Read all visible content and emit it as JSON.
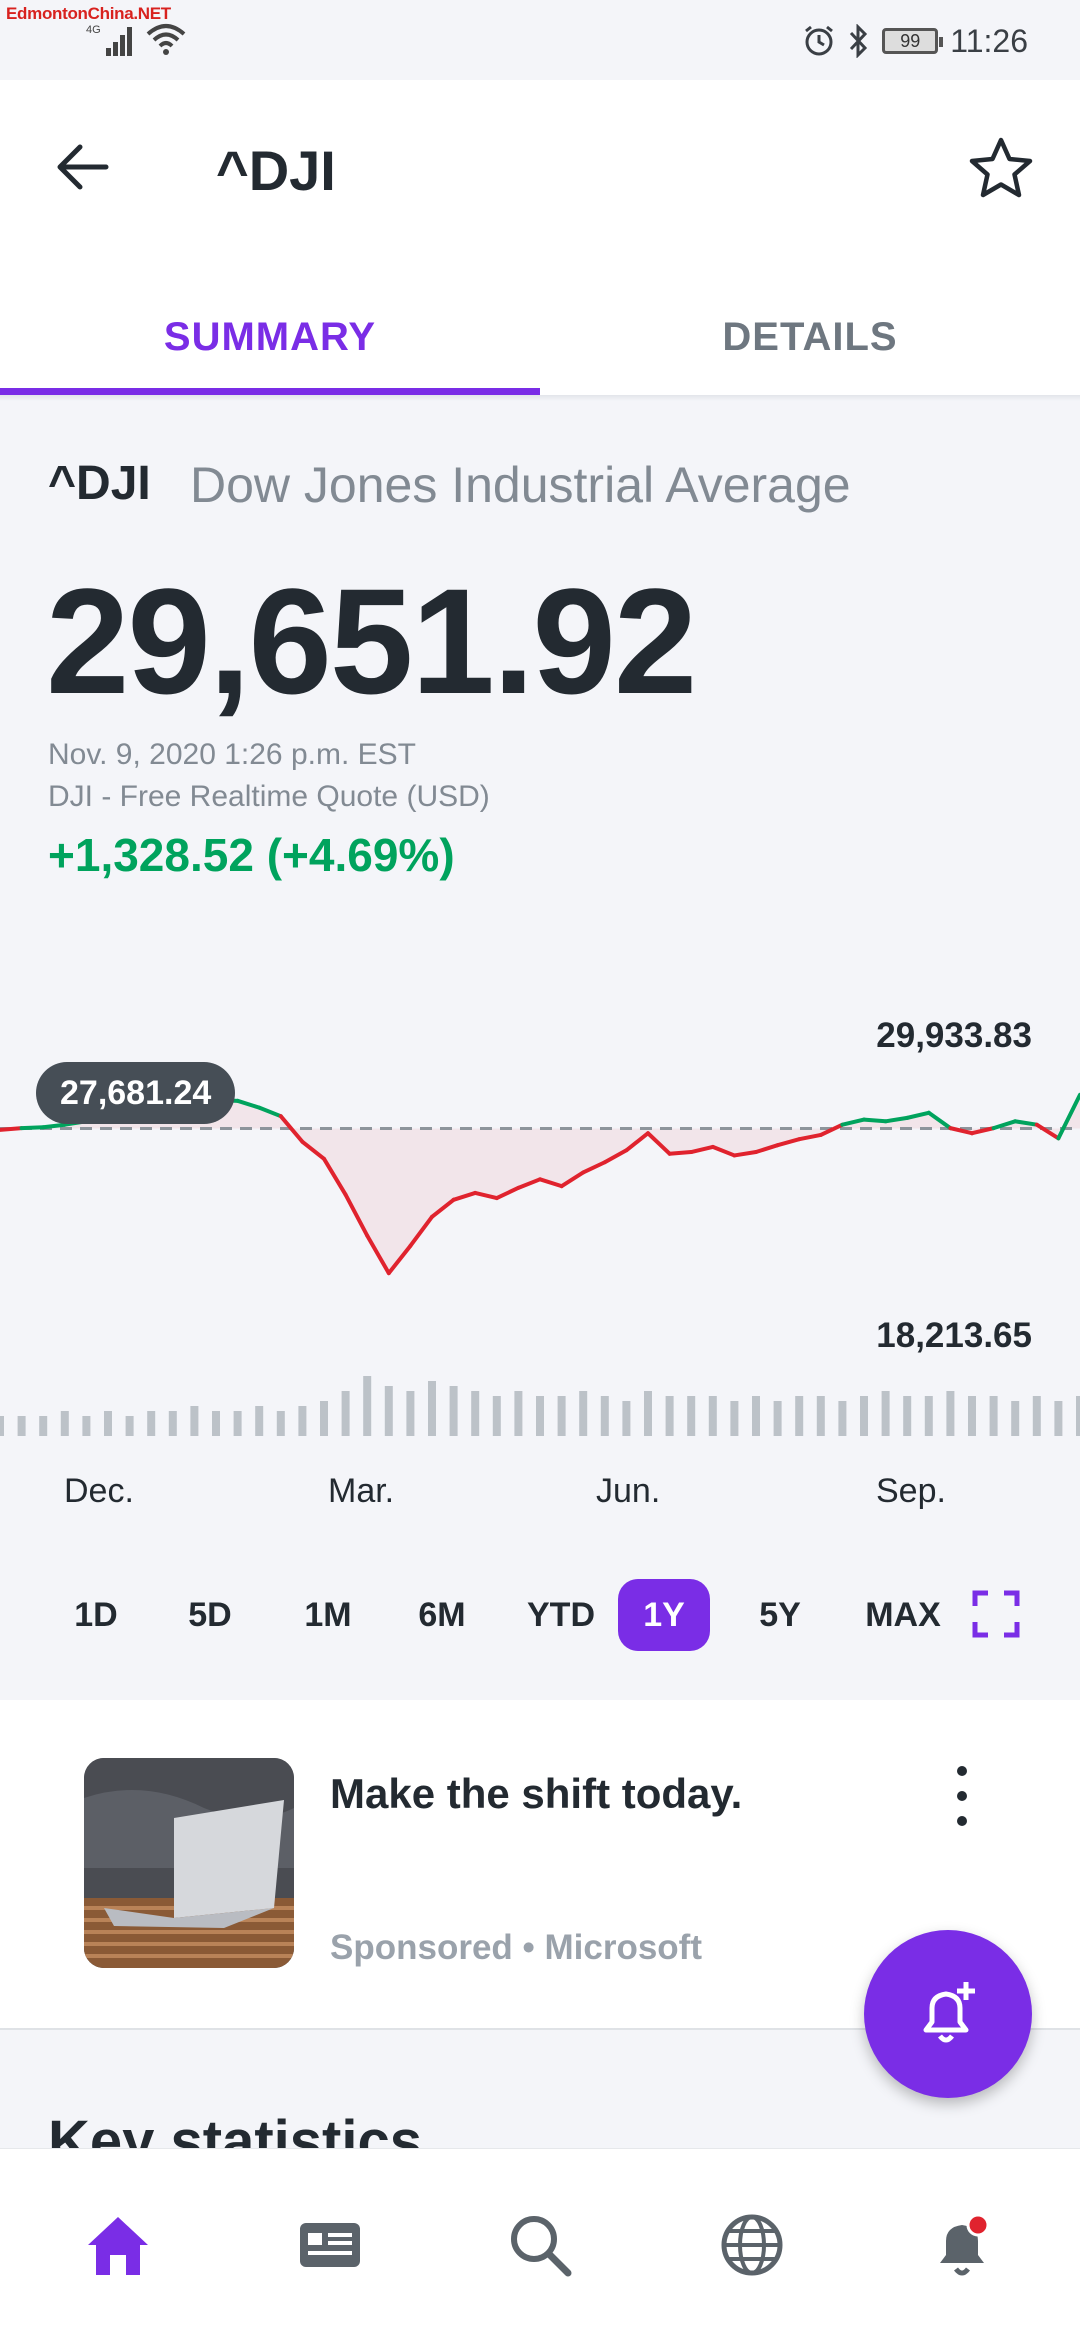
{
  "status_bar": {
    "brand": "EdmontonChina.NET",
    "network": "4G",
    "battery": "99",
    "time": "11:26"
  },
  "header": {
    "title": "^DJI",
    "tabs": [
      {
        "label": "SUMMARY",
        "active": true
      },
      {
        "label": "DETAILS",
        "active": false
      }
    ]
  },
  "quote": {
    "symbol": "^DJI",
    "name": "Dow Jones Industrial Average",
    "price": "29,651.92",
    "timestamp": "Nov. 9, 2020 1:26 p.m. EST",
    "source": "DJI - Free Realtime Quote (USD)",
    "change": "+1,328.52 (+4.69%)",
    "colors": {
      "up": "#00a35d",
      "down": "#e0232e",
      "accent": "#7a2de6"
    }
  },
  "chart_data": {
    "type": "line",
    "previous_close": 27681.24,
    "previous_close_label": "27,681.24",
    "high_label": "29,933.83",
    "low_label": "18,213.65",
    "ylim": [
      18213.65,
      29933.83
    ],
    "x_ticks": [
      "Dec.",
      "Mar.",
      "Jun.",
      "Sep."
    ],
    "x": [
      0,
      1,
      2,
      3,
      4,
      5,
      6,
      7,
      8,
      9,
      10,
      11,
      12,
      13,
      14,
      15,
      16,
      17,
      18,
      19,
      20,
      21,
      22,
      23,
      24,
      25,
      26,
      27,
      28,
      29,
      30,
      31,
      32,
      33,
      34,
      35,
      36,
      37,
      38,
      39,
      40,
      41,
      42,
      43,
      44,
      45,
      46,
      47,
      48,
      49,
      50
    ],
    "values": [
      27600,
      27700,
      27750,
      27900,
      28100,
      28300,
      28600,
      28800,
      28700,
      29100,
      29350,
      29300,
      28900,
      28400,
      26900,
      25900,
      23800,
      21400,
      19200,
      20800,
      22500,
      23500,
      23900,
      23600,
      24200,
      24700,
      24300,
      25100,
      25700,
      26400,
      27400,
      26200,
      26300,
      26600,
      26100,
      26300,
      26700,
      27050,
      27300,
      27900,
      28200,
      28100,
      28300,
      28600,
      27700,
      27400,
      27700,
      28100,
      27900,
      27100,
      29651.92
    ],
    "volume": [
      4,
      4,
      4,
      5,
      4,
      5,
      4,
      5,
      5,
      6,
      5,
      5,
      6,
      5,
      6,
      7,
      9,
      12,
      10,
      9,
      11,
      10,
      9,
      8,
      9,
      8,
      8,
      9,
      8,
      7,
      9,
      8,
      8,
      8,
      7,
      8,
      7,
      8,
      8,
      7,
      8,
      9,
      8,
      8,
      9,
      8,
      8,
      7,
      8,
      7,
      8
    ],
    "ranges": [
      "1D",
      "5D",
      "1M",
      "6M",
      "YTD",
      "1Y",
      "5Y",
      "MAX"
    ],
    "active_range": "1Y"
  },
  "ad": {
    "title": "Make the shift today.",
    "sponsor": "Sponsored • Microsoft"
  },
  "key_statistics_heading": "Key statistics",
  "nav": [
    "home-icon",
    "news-icon",
    "search-icon",
    "globe-icon",
    "bell-icon"
  ]
}
